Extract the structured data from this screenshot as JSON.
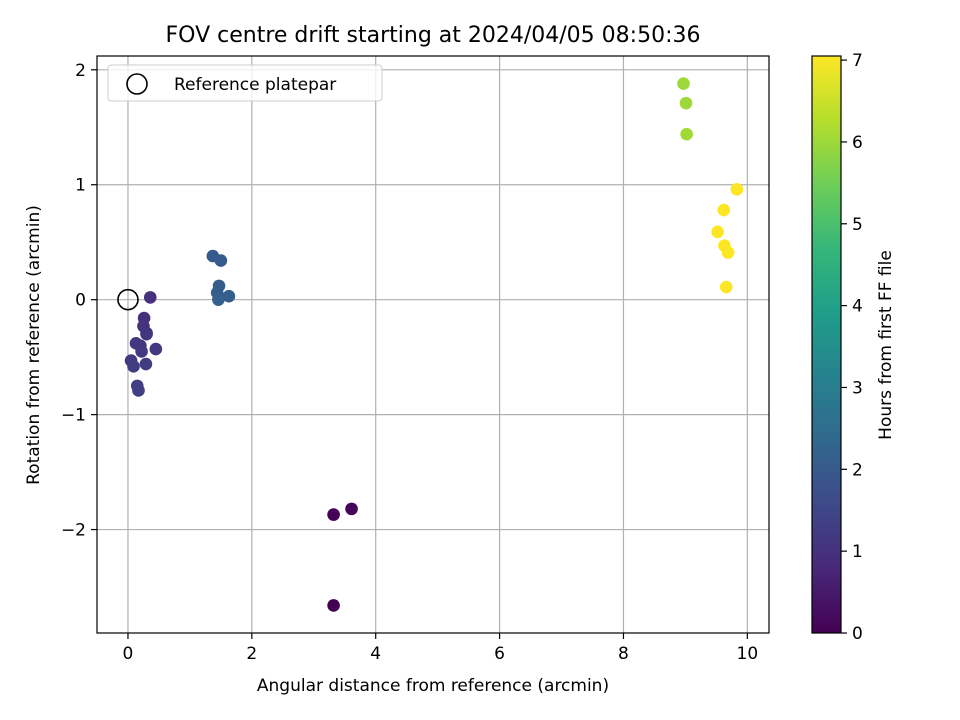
{
  "chart_data": {
    "type": "scatter",
    "title": "FOV centre drift starting at 2024/04/05 08:50:36",
    "xlabel": "Angular distance from reference (arcmin)",
    "ylabel": "Rotation from reference (arcmin)",
    "xlim": [
      -0.5,
      10.35
    ],
    "ylim": [
      -2.9,
      2.12
    ],
    "xticks": [
      0,
      2,
      4,
      6,
      8,
      10
    ],
    "yticks": [
      -2,
      -1,
      0,
      1,
      2
    ],
    "xtick_labels": [
      "0",
      "2",
      "4",
      "6",
      "8",
      "10"
    ],
    "ytick_labels": [
      "−2",
      "−1",
      "0",
      "1",
      "2"
    ],
    "grid": true,
    "legend": {
      "placement": "top-left",
      "entries": [
        "Reference platepar"
      ]
    },
    "reference_point": {
      "x": 0,
      "y": 0
    },
    "colorbar": {
      "label": "Hours from first FF file",
      "range": [
        0,
        7.05
      ],
      "ticks": [
        0,
        1,
        2,
        3,
        4,
        5,
        6,
        7
      ],
      "tick_labels": [
        "0",
        "1",
        "2",
        "3",
        "4",
        "5",
        "6",
        "7"
      ],
      "colormap": [
        "#440154",
        "#482878",
        "#3e4989",
        "#31688e",
        "#26828e",
        "#1f9e89",
        "#35b779",
        "#6ece58",
        "#b5de2b",
        "#fde725"
      ]
    },
    "points": [
      {
        "x": 3.32,
        "y": -2.66,
        "hours": 0.0
      },
      {
        "x": 3.32,
        "y": -1.87,
        "hours": 0.05
      },
      {
        "x": 3.61,
        "y": -1.82,
        "hours": 0.1
      },
      {
        "x": 0.36,
        "y": 0.02,
        "hours": 1.0
      },
      {
        "x": 0.26,
        "y": -0.16,
        "hours": 1.02
      },
      {
        "x": 0.25,
        "y": -0.23,
        "hours": 1.05
      },
      {
        "x": 0.3,
        "y": -0.29,
        "hours": 1.08
      },
      {
        "x": 0.3,
        "y": -0.3,
        "hours": 1.1
      },
      {
        "x": 0.13,
        "y": -0.38,
        "hours": 1.12
      },
      {
        "x": 0.2,
        "y": -0.4,
        "hours": 1.15
      },
      {
        "x": 0.45,
        "y": -0.43,
        "hours": 1.18
      },
      {
        "x": 0.22,
        "y": -0.45,
        "hours": 1.2
      },
      {
        "x": 0.05,
        "y": -0.53,
        "hours": 1.22
      },
      {
        "x": 0.09,
        "y": -0.58,
        "hours": 1.25
      },
      {
        "x": 0.29,
        "y": -0.56,
        "hours": 1.28
      },
      {
        "x": 0.15,
        "y": -0.75,
        "hours": 1.3
      },
      {
        "x": 0.17,
        "y": -0.79,
        "hours": 1.32
      },
      {
        "x": 1.37,
        "y": 0.38,
        "hours": 2.0
      },
      {
        "x": 1.5,
        "y": 0.34,
        "hours": 2.02
      },
      {
        "x": 1.47,
        "y": 0.12,
        "hours": 2.05
      },
      {
        "x": 1.44,
        "y": 0.06,
        "hours": 2.08
      },
      {
        "x": 1.63,
        "y": 0.03,
        "hours": 2.1
      },
      {
        "x": 1.46,
        "y": 0.0,
        "hours": 2.12
      },
      {
        "x": 8.97,
        "y": 1.88,
        "hours": 6.0
      },
      {
        "x": 9.01,
        "y": 1.71,
        "hours": 6.02
      },
      {
        "x": 9.02,
        "y": 1.44,
        "hours": 6.05
      },
      {
        "x": 9.83,
        "y": 0.96,
        "hours": 7.05
      },
      {
        "x": 9.62,
        "y": 0.78,
        "hours": 7.05
      },
      {
        "x": 9.52,
        "y": 0.59,
        "hours": 7.05
      },
      {
        "x": 9.63,
        "y": 0.47,
        "hours": 7.05
      },
      {
        "x": 9.69,
        "y": 0.41,
        "hours": 7.05
      },
      {
        "x": 9.66,
        "y": 0.11,
        "hours": 7.05
      }
    ]
  }
}
